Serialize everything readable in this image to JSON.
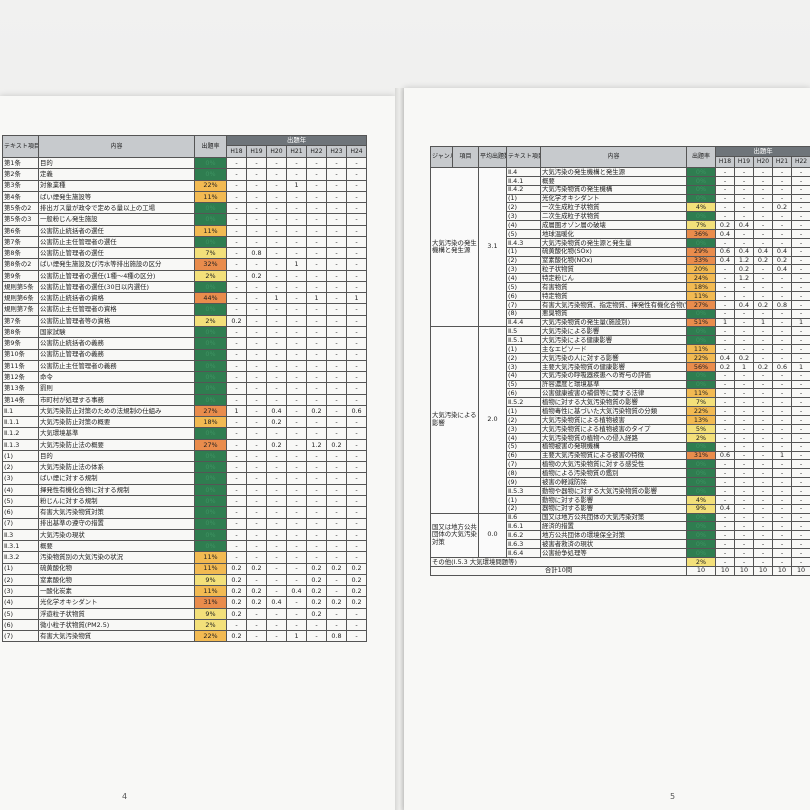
{
  "left_page": {
    "page_number": "4",
    "header": {
      "code": "テキスト項目番号",
      "content": "内容",
      "rate": "出題率",
      "years_title": "出題年",
      "years": [
        "H18",
        "H19",
        "H20",
        "H21",
        "H22",
        "H23",
        "H24"
      ]
    },
    "rows": [
      [
        "第1条",
        "目的",
        "0%",
        "-",
        "-",
        "-",
        "-",
        "-",
        "-",
        "-"
      ],
      [
        "第2条",
        "定義",
        "0%",
        "-",
        "-",
        "-",
        "-",
        "-",
        "-",
        "-"
      ],
      [
        "第3条",
        "対象業種",
        "22%",
        "-",
        "-",
        "-",
        "1",
        "-",
        "-",
        "-"
      ],
      [
        "第4条",
        "ばい煙発生施設等",
        "11%",
        "-",
        "-",
        "-",
        "-",
        "-",
        "-",
        "-"
      ],
      [
        "第5条の2",
        "排出ガス量が政令で定める量以上の工場",
        "0%",
        "-",
        "-",
        "-",
        "-",
        "-",
        "-",
        "-"
      ],
      [
        "第5条の3",
        "一般粉じん発生施設",
        "0%",
        "-",
        "-",
        "-",
        "-",
        "-",
        "-",
        "-"
      ],
      [
        "第6条",
        "公害防止統括者の選任",
        "11%",
        "-",
        "-",
        "-",
        "-",
        "-",
        "-",
        "-"
      ],
      [
        "第7条",
        "公害防止主任管理者の選任",
        "0%",
        "-",
        "-",
        "-",
        "-",
        "-",
        "-",
        "-"
      ],
      [
        "第8条",
        "公害防止管理者の選任",
        "7%",
        "-",
        "0.8",
        "-",
        "-",
        "-",
        "-",
        "-"
      ],
      [
        "第8条の2",
        "ばい煙発生施設及び汚水等排出施設の区分",
        "32%",
        "-",
        "-",
        "-",
        "1",
        "-",
        "-",
        "-"
      ],
      [
        "第9条",
        "公害防止管理者の選任(1種〜4種の区分)",
        "2%",
        "-",
        "0.2",
        "-",
        "-",
        "-",
        "-",
        "-"
      ],
      [
        "規則第5条",
        "公害防止管理者の選任(30日以内選任)",
        "0%",
        "-",
        "-",
        "-",
        "-",
        "-",
        "-",
        "-"
      ],
      [
        "規則第6条",
        "公害防止統括者の資格",
        "44%",
        "-",
        "-",
        "1",
        "-",
        "1",
        "-",
        "1"
      ],
      [
        "規則第7条",
        "公害防止主任管理者の資格",
        "0%",
        "-",
        "-",
        "-",
        "-",
        "-",
        "-",
        "-"
      ],
      [
        "第7条",
        "公害防止管理者等の資格",
        "2%",
        "0.2",
        "-",
        "-",
        "-",
        "-",
        "-",
        "-"
      ],
      [
        "第8条",
        "国家試験",
        "0%",
        "-",
        "-",
        "-",
        "-",
        "-",
        "-",
        "-"
      ],
      [
        "第9条",
        "公害防止統括者の義務",
        "0%",
        "-",
        "-",
        "-",
        "-",
        "-",
        "-",
        "-"
      ],
      [
        "第10条",
        "公害防止管理者の義務",
        "0%",
        "-",
        "-",
        "-",
        "-",
        "-",
        "-",
        "-"
      ],
      [
        "第11条",
        "公害防止主任管理者の義務",
        "0%",
        "-",
        "-",
        "-",
        "-",
        "-",
        "-",
        "-"
      ],
      [
        "第12条",
        "命令",
        "0%",
        "-",
        "-",
        "-",
        "-",
        "-",
        "-",
        "-"
      ],
      [
        "第13条",
        "罰則",
        "0%",
        "-",
        "-",
        "-",
        "-",
        "-",
        "-",
        "-"
      ],
      [
        "第14条",
        "市町村が処理する事務",
        "0%",
        "-",
        "-",
        "-",
        "-",
        "-",
        "-",
        "-"
      ],
      [
        "Ⅱ.1",
        "大気汚染防止対策のための法規制の仕組み",
        "27%",
        "1",
        "-",
        "0.4",
        "-",
        "0.2",
        "-",
        "0.6"
      ],
      [
        "Ⅱ.1.1",
        "大気汚染防止対策の概要",
        "18%",
        "-",
        "-",
        "0.2",
        "-",
        "-",
        "-",
        "-"
      ],
      [
        "Ⅱ.1.2",
        "大気環境基準",
        "0%",
        "-",
        "-",
        "-",
        "-",
        "-",
        "-",
        "-"
      ],
      [
        "Ⅱ.1.3",
        "大気汚染防止法の概要",
        "27%",
        "-",
        "-",
        "0.2",
        "-",
        "1.2",
        "0.2",
        "-"
      ],
      [
        "(1)",
        "目的",
        "0%",
        "-",
        "-",
        "-",
        "-",
        "-",
        "-",
        "-"
      ],
      [
        "(2)",
        "大気汚染防止法の体系",
        "0%",
        "-",
        "-",
        "-",
        "-",
        "-",
        "-",
        "-"
      ],
      [
        "(3)",
        "ばい煙に対する規制",
        "0%",
        "-",
        "-",
        "-",
        "-",
        "-",
        "-",
        "-"
      ],
      [
        "(4)",
        "揮発性有機化合物に対する規制",
        "0%",
        "-",
        "-",
        "-",
        "-",
        "-",
        "-",
        "-"
      ],
      [
        "(5)",
        "粉じんに対する規制",
        "0%",
        "-",
        "-",
        "-",
        "-",
        "-",
        "-",
        "-"
      ],
      [
        "(6)",
        "有害大気汚染物質対策",
        "0%",
        "-",
        "-",
        "-",
        "-",
        "-",
        "-",
        "-"
      ],
      [
        "(7)",
        "排出基準の遵守の措置",
        "0%",
        "-",
        "-",
        "-",
        "-",
        "-",
        "-",
        "-"
      ],
      [
        "Ⅱ.3",
        "大気汚染の現状",
        "0%",
        "-",
        "-",
        "-",
        "-",
        "-",
        "-",
        "-"
      ],
      [
        "Ⅱ.3.1",
        "概要",
        "0%",
        "-",
        "-",
        "-",
        "-",
        "-",
        "-",
        "-"
      ],
      [
        "Ⅱ.3.2",
        "汚染物質別の大気汚染の状況",
        "11%",
        "-",
        "-",
        "-",
        "-",
        "-",
        "-",
        "-"
      ],
      [
        "(1)",
        "硫黄酸化物",
        "11%",
        "0.2",
        "0.2",
        "-",
        "-",
        "0.2",
        "0.2",
        "0.2"
      ],
      [
        "(2)",
        "窒素酸化物",
        "9%",
        "0.2",
        "-",
        "-",
        "-",
        "0.2",
        "-",
        "0.2"
      ],
      [
        "(3)",
        "一酸化炭素",
        "11%",
        "0.2",
        "0.2",
        "-",
        "0.4",
        "0.2",
        "-",
        "0.2"
      ],
      [
        "(4)",
        "光化学オキシダント",
        "31%",
        "0.2",
        "0.2",
        "0.4",
        "-",
        "0.2",
        "0.2",
        "0.2"
      ],
      [
        "(5)",
        "浮遊粒子状物質",
        "9%",
        "0.2",
        "-",
        "-",
        "-",
        "0.2",
        "-",
        "-"
      ],
      [
        "(6)",
        "微小粒子状物質(PM2.5)",
        "2%",
        "-",
        "-",
        "-",
        "-",
        "-",
        "-",
        "-"
      ],
      [
        "(7)",
        "有害大気汚染物質",
        "22%",
        "0.2",
        "-",
        "-",
        "1",
        "-",
        "0.8",
        "-"
      ]
    ]
  },
  "right_page": {
    "page_number": "5",
    "header": {
      "genre": "ジャンル",
      "item": "項目",
      "avg": "平均出題数",
      "code": "テキスト項目番号",
      "content": "内容",
      "rate": "出題率",
      "years_title": "出題年",
      "years": [
        "H18",
        "H19",
        "H20",
        "H21",
        "H22"
      ]
    },
    "groups": [
      {
        "label": "大気汚染の発生機構と発生源",
        "avg": "3.1",
        "rows": [
          [
            "Ⅱ.4",
            "大気汚染の発生機構と発生源",
            "0%",
            "-",
            "-",
            "-",
            "-",
            "-"
          ],
          [
            "Ⅱ.4.1",
            "概要",
            "0%",
            "-",
            "-",
            "-",
            "-",
            "-"
          ],
          [
            "Ⅱ.4.2",
            "大気汚染物質の発生機構",
            "0%",
            "-",
            "-",
            "-",
            "-",
            "-"
          ],
          [
            "(1)",
            "光化学オキシダント",
            "0%",
            "-",
            "-",
            "-",
            "-",
            "-"
          ],
          [
            "(2)",
            "一次生成粒子状物質",
            "4%",
            "-",
            "-",
            "-",
            "0.2",
            "-"
          ],
          [
            "(3)",
            "二次生成粒子状物質",
            "0%",
            "-",
            "-",
            "-",
            "-",
            "-"
          ],
          [
            "(4)",
            "成層圏オゾン層の破壊",
            "7%",
            "0.2",
            "0.4",
            "-",
            "-",
            "-"
          ],
          [
            "(5)",
            "地球温暖化",
            "36%",
            "0.4",
            "-",
            "-",
            "-",
            "-"
          ],
          [
            "Ⅱ.4.3",
            "大気汚染物質の発生源と発生量",
            "0%",
            "-",
            "-",
            "-",
            "-",
            "-"
          ],
          [
            "(1)",
            "硫黄酸化物(SOx)",
            "29%",
            "0.6",
            "0.4",
            "0.4",
            "0.4",
            "-"
          ],
          [
            "(2)",
            "窒素酸化物(NOx)",
            "33%",
            "0.4",
            "1.2",
            "0.2",
            "0.2",
            "-"
          ],
          [
            "(3)",
            "粒子状物質",
            "20%",
            "-",
            "0.2",
            "-",
            "0.4",
            "-"
          ],
          [
            "(4)",
            "特定粉じん",
            "24%",
            "-",
            "1.2",
            "-",
            "-",
            "-"
          ],
          [
            "(5)",
            "有害物質",
            "18%",
            "-",
            "-",
            "-",
            "-",
            "-"
          ],
          [
            "(6)",
            "特定物質",
            "11%",
            "-",
            "-",
            "-",
            "-",
            "-"
          ],
          [
            "(7)",
            "有害大気汚染物質、指定物質、揮発性有機化合物(VOC)",
            "27%",
            "-",
            "0.4",
            "0.2",
            "0.8",
            "-"
          ],
          [
            "(8)",
            "悪臭物質",
            "0%",
            "-",
            "-",
            "-",
            "-",
            "-"
          ],
          [
            "Ⅱ.4.4",
            "大気汚染物質の発生量(施設別)",
            "51%",
            "1",
            "-",
            "1",
            "-",
            "1"
          ]
        ]
      },
      {
        "label": "大気汚染による影響",
        "avg": "2.0",
        "rows": [
          [
            "Ⅱ.5",
            "大気汚染による影響",
            "0%",
            "-",
            "-",
            "-",
            "-",
            "-"
          ],
          [
            "Ⅱ.5.1",
            "大気汚染による健康影響",
            "0%",
            "-",
            "-",
            "-",
            "-",
            "-"
          ],
          [
            "(1)",
            "主なエピソード",
            "11%",
            "-",
            "-",
            "-",
            "-",
            "-"
          ],
          [
            "(2)",
            "大気汚染の人に対する影響",
            "22%",
            "0.4",
            "0.2",
            "-",
            "-",
            "-"
          ],
          [
            "(3)",
            "主要大気汚染物質の健康影響",
            "56%",
            "0.2",
            "1",
            "0.2",
            "0.6",
            "1"
          ],
          [
            "(4)",
            "大気汚染の呼吸器疾患への寄与の評価",
            "0%",
            "-",
            "-",
            "-",
            "-",
            "-"
          ],
          [
            "(5)",
            "許容濃度と環境基準",
            "0%",
            "-",
            "-",
            "-",
            "-",
            "-"
          ],
          [
            "(6)",
            "公害健康被害の補償等に関する法律",
            "11%",
            "-",
            "-",
            "-",
            "-",
            "-"
          ],
          [
            "Ⅱ.5.2",
            "植物に対する大気汚染物質の影響",
            "7%",
            "-",
            "-",
            "-",
            "-",
            "-"
          ],
          [
            "(1)",
            "植物毒性に基づいた大気汚染物質の分類",
            "22%",
            "-",
            "-",
            "-",
            "-",
            "-"
          ],
          [
            "(2)",
            "大気汚染物質による植物被害",
            "13%",
            "-",
            "-",
            "-",
            "-",
            "-"
          ],
          [
            "(3)",
            "大気汚染物質による植物被害のタイプ",
            "5%",
            "-",
            "-",
            "-",
            "-",
            "-"
          ],
          [
            "(4)",
            "大気汚染物質の植物への侵入経路",
            "2%",
            "-",
            "-",
            "-",
            "-",
            "-"
          ],
          [
            "(5)",
            "植物被害の発現機構",
            "0%",
            "-",
            "-",
            "-",
            "-",
            "-"
          ],
          [
            "(6)",
            "主要大気汚染物質による被害の特徴",
            "31%",
            "0.6",
            "-",
            "-",
            "1",
            "-"
          ],
          [
            "(7)",
            "植物の大気汚染物質に対する感受性",
            "0%",
            "-",
            "-",
            "-",
            "-",
            "-"
          ],
          [
            "(8)",
            "植物による汚染物質の鑑別",
            "0%",
            "-",
            "-",
            "-",
            "-",
            "-"
          ],
          [
            "(9)",
            "被害の軽減防除",
            "0%",
            "-",
            "-",
            "-",
            "-",
            "-"
          ],
          [
            "Ⅱ.5.3",
            "動物や器物に対する大気汚染物質の影響",
            "0%",
            "-",
            "-",
            "-",
            "-",
            "-"
          ],
          [
            "(1)",
            "動物に対する影響",
            "4%",
            "-",
            "-",
            "-",
            "-",
            "-"
          ],
          [
            "(2)",
            "器物に対する影響",
            "9%",
            "0.4",
            "-",
            "-",
            "-",
            "-"
          ]
        ]
      },
      {
        "label": "国又は地方公共団体の大気汚染対策",
        "avg": "0.0",
        "rows": [
          [
            "Ⅱ.6",
            "国又は地方公共団体の大気汚染対策",
            "0%",
            "-",
            "-",
            "-",
            "-",
            "-"
          ],
          [
            "Ⅱ.6.1",
            "経済的措置",
            "0%",
            "-",
            "-",
            "-",
            "-",
            "-"
          ],
          [
            "Ⅱ.6.2",
            "地方公共団体の環境保全対策",
            "0%",
            "-",
            "-",
            "-",
            "-",
            "-"
          ],
          [
            "Ⅱ.6.3",
            "被害者救済の現状",
            "0%",
            "-",
            "-",
            "-",
            "-",
            "-"
          ],
          [
            "Ⅱ.6.4",
            "公害紛争処理等",
            "0%",
            "-",
            "-",
            "-",
            "-",
            "-"
          ]
        ]
      }
    ],
    "footer_rows": [
      [
        "その他(Ⅰ.5.3 大気環境問題等)",
        "2%",
        "-",
        "-",
        "-",
        "-",
        "-"
      ],
      [
        "合計10問",
        "10",
        "10",
        "10",
        "10",
        "10",
        "10"
      ]
    ]
  }
}
